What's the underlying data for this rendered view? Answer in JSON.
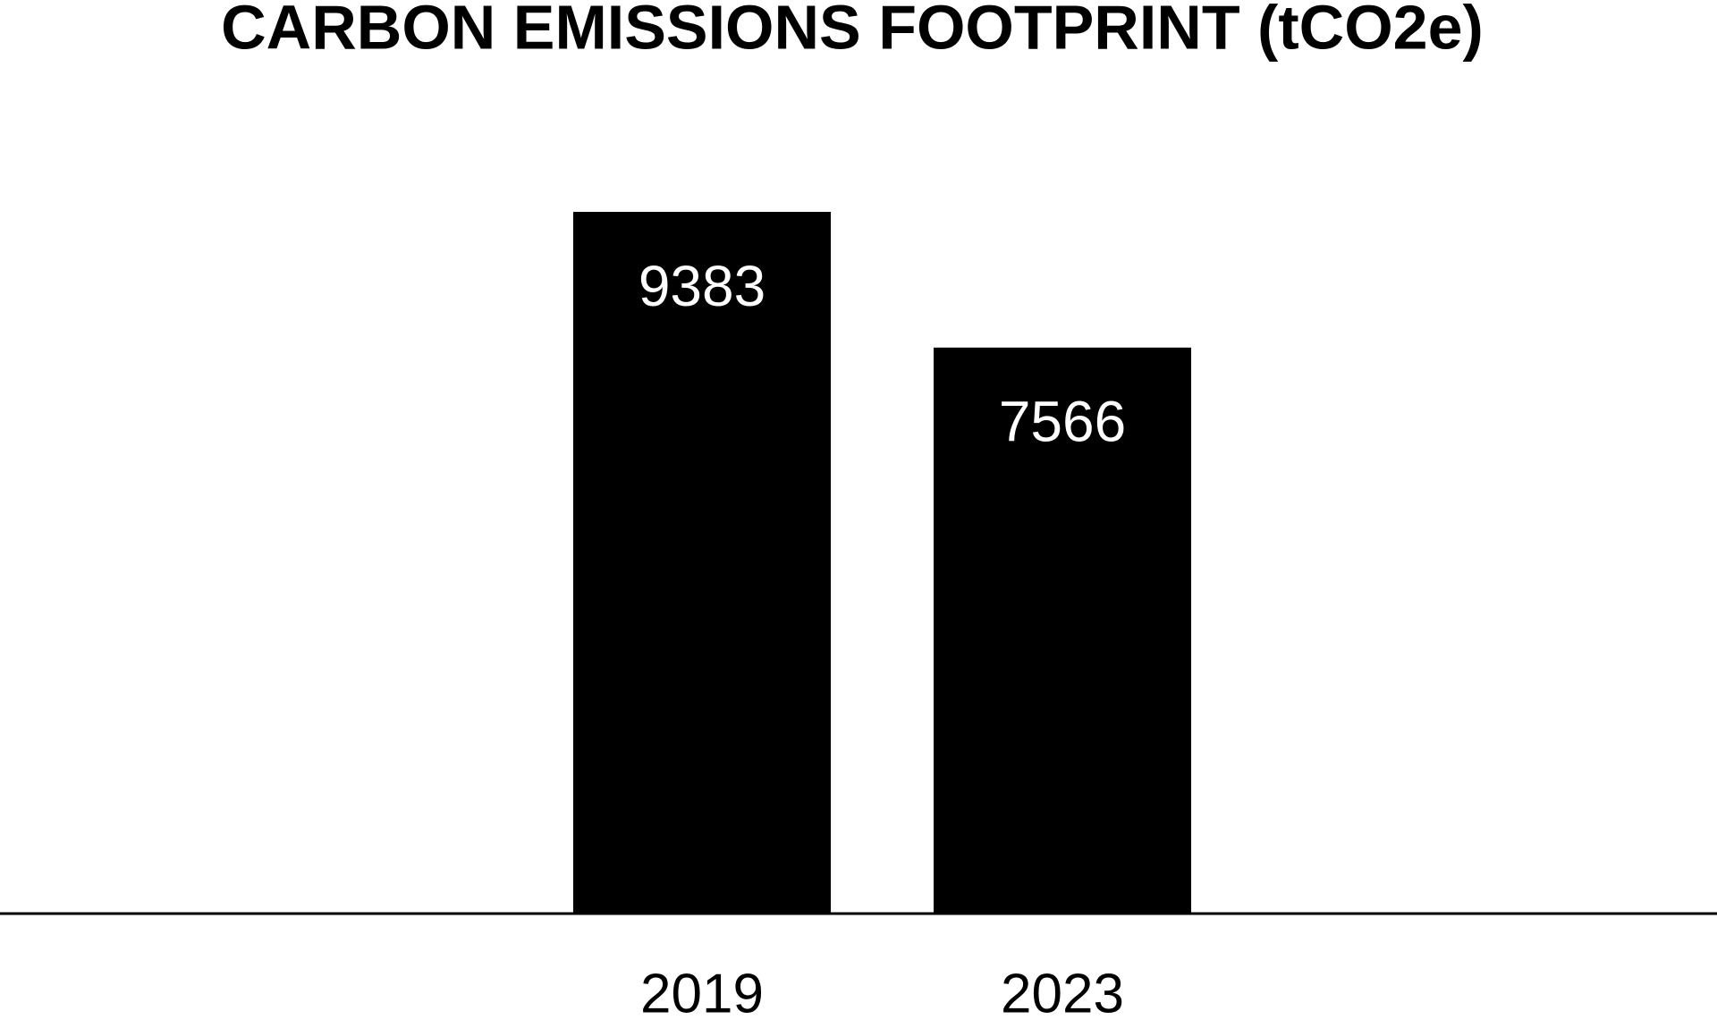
{
  "chart_data": {
    "type": "bar",
    "title": "CARBON EMISSIONS FOOTPRINT (tCO2e)",
    "categories": [
      "2019",
      "2023"
    ],
    "values": [
      9383,
      7566
    ],
    "color": "#000000"
  }
}
